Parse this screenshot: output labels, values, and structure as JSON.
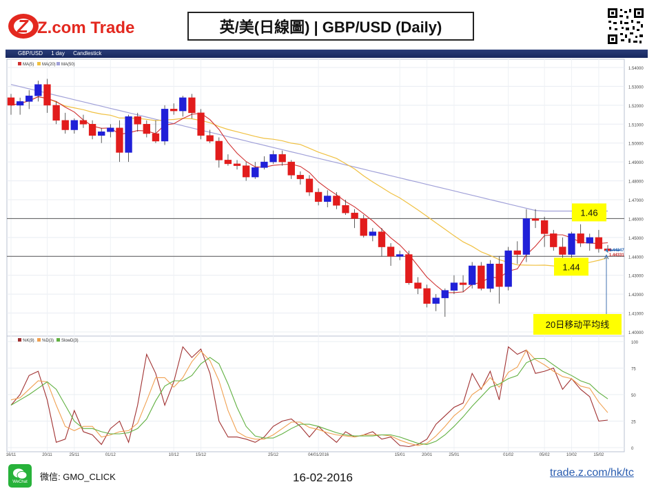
{
  "header": {
    "logo_text": "Z.com Trade",
    "title": "英/美(日線圖) | GBP/USD  (Daily)"
  },
  "toolbar": {
    "symbol": "GBP/USD",
    "period": "1 day",
    "style": "Candlestick"
  },
  "footer": {
    "wechat_label": "WeChat",
    "wechat_id": "微信: GMO_CLICK",
    "date": "16-02-2016",
    "link": "trade.z.com/hk/tc"
  },
  "colors": {
    "up": "#2020d8",
    "down": "#e21c1c",
    "ma5": "#d03030",
    "ma20": "#f0c040",
    "ma50": "#a0a0d8",
    "k": "#a03030",
    "d": "#f0a050",
    "slow": "#60b040",
    "annot_bg": "#ffff00"
  },
  "chart_data": [
    {
      "type": "candlestick",
      "legend": [
        "MA(5)",
        "MA(20)",
        "MA(50)"
      ],
      "ylim": [
        1.4,
        1.54
      ],
      "yticks": [
        "1.54000",
        "1.53000",
        "1.52000",
        "1.51000",
        "1.50000",
        "1.49000",
        "1.48000",
        "1.47000",
        "1.46000",
        "1.45000",
        "1.44000",
        "1.43000",
        "1.42000",
        "1.41000",
        "1.40000"
      ],
      "xtick_labels": [
        {
          "i": 0,
          "label": "16/11"
        },
        {
          "i": 4,
          "label": "20/11"
        },
        {
          "i": 7,
          "label": "25/11"
        },
        {
          "i": 11,
          "label": "01/12"
        },
        {
          "i": 18,
          "label": "10/12"
        },
        {
          "i": 21,
          "label": "15/12"
        },
        {
          "i": 29,
          "label": "25/12"
        },
        {
          "i": 34,
          "label": "04/01/2016"
        },
        {
          "i": 43,
          "label": "15/01"
        },
        {
          "i": 46,
          "label": "20/01"
        },
        {
          "i": 49,
          "label": "25/01"
        },
        {
          "i": 55,
          "label": "01/02"
        },
        {
          "i": 59,
          "label": "05/02"
        },
        {
          "i": 62,
          "label": "10/02"
        },
        {
          "i": 65,
          "label": "15/02"
        }
      ],
      "ohlc": [
        [
          1.524,
          1.526,
          1.515,
          1.52
        ],
        [
          1.52,
          1.524,
          1.515,
          1.522
        ],
        [
          1.522,
          1.528,
          1.518,
          1.525
        ],
        [
          1.525,
          1.533,
          1.522,
          1.531
        ],
        [
          1.531,
          1.534,
          1.516,
          1.52
        ],
        [
          1.52,
          1.522,
          1.51,
          1.512
        ],
        [
          1.512,
          1.516,
          1.505,
          1.507
        ],
        [
          1.507,
          1.513,
          1.505,
          1.512
        ],
        [
          1.512,
          1.515,
          1.508,
          1.51
        ],
        [
          1.51,
          1.512,
          1.502,
          1.504
        ],
        [
          1.504,
          1.508,
          1.5,
          1.506
        ],
        [
          1.506,
          1.51,
          1.503,
          1.508
        ],
        [
          1.508,
          1.512,
          1.49,
          1.495
        ],
        [
          1.495,
          1.515,
          1.49,
          1.514
        ],
        [
          1.514,
          1.516,
          1.506,
          1.51
        ],
        [
          1.51,
          1.512,
          1.503,
          1.505
        ],
        [
          1.505,
          1.512,
          1.5,
          1.501
        ],
        [
          1.501,
          1.52,
          1.499,
          1.518
        ],
        [
          1.518,
          1.521,
          1.515,
          1.517
        ],
        [
          1.517,
          1.525,
          1.514,
          1.524
        ],
        [
          1.524,
          1.526,
          1.513,
          1.516
        ],
        [
          1.516,
          1.518,
          1.502,
          1.504
        ],
        [
          1.504,
          1.507,
          1.5,
          1.501
        ],
        [
          1.501,
          1.503,
          1.487,
          1.491
        ],
        [
          1.491,
          1.494,
          1.488,
          1.489
        ],
        [
          1.489,
          1.491,
          1.486,
          1.488
        ],
        [
          1.488,
          1.49,
          1.48,
          1.482
        ],
        [
          1.482,
          1.49,
          1.481,
          1.487
        ],
        [
          1.487,
          1.493,
          1.486,
          1.49
        ],
        [
          1.49,
          1.496,
          1.489,
          1.494
        ],
        [
          1.494,
          1.496,
          1.488,
          1.49
        ],
        [
          1.49,
          1.491,
          1.481,
          1.483
        ],
        [
          1.483,
          1.485,
          1.478,
          1.481
        ],
        [
          1.481,
          1.483,
          1.472,
          1.474
        ],
        [
          1.474,
          1.476,
          1.467,
          1.469
        ],
        [
          1.469,
          1.475,
          1.466,
          1.472
        ],
        [
          1.472,
          1.474,
          1.465,
          1.467
        ],
        [
          1.467,
          1.47,
          1.462,
          1.463
        ],
        [
          1.463,
          1.465,
          1.455,
          1.46
        ],
        [
          1.46,
          1.462,
          1.45,
          1.451
        ],
        [
          1.451,
          1.455,
          1.448,
          1.453
        ],
        [
          1.453,
          1.455,
          1.44,
          1.445
        ],
        [
          1.445,
          1.447,
          1.435,
          1.44
        ],
        [
          1.44,
          1.443,
          1.438,
          1.441
        ],
        [
          1.441,
          1.443,
          1.425,
          1.426
        ],
        [
          1.426,
          1.429,
          1.42,
          1.423
        ],
        [
          1.423,
          1.425,
          1.413,
          1.415
        ],
        [
          1.415,
          1.42,
          1.411,
          1.418
        ],
        [
          1.418,
          1.423,
          1.408,
          1.422
        ],
        [
          1.422,
          1.43,
          1.42,
          1.426
        ],
        [
          1.426,
          1.43,
          1.421,
          1.425
        ],
        [
          1.425,
          1.437,
          1.423,
          1.435
        ],
        [
          1.435,
          1.437,
          1.422,
          1.423
        ],
        [
          1.423,
          1.438,
          1.421,
          1.436
        ],
        [
          1.436,
          1.44,
          1.415,
          1.424
        ],
        [
          1.424,
          1.445,
          1.422,
          1.443
        ],
        [
          1.443,
          1.448,
          1.436,
          1.441
        ],
        [
          1.441,
          1.465,
          1.437,
          1.46
        ],
        [
          1.46,
          1.465,
          1.455,
          1.459
        ],
        [
          1.459,
          1.461,
          1.445,
          1.452
        ],
        [
          1.452,
          1.454,
          1.443,
          1.445
        ],
        [
          1.445,
          1.45,
          1.437,
          1.441
        ],
        [
          1.441,
          1.453,
          1.438,
          1.452
        ],
        [
          1.452,
          1.457,
          1.445,
          1.447
        ],
        [
          1.447,
          1.452,
          1.443,
          1.45
        ],
        [
          1.45,
          1.454,
          1.442,
          1.444
        ],
        [
          1.444,
          1.446,
          1.442,
          1.443
        ]
      ],
      "last_prices": [
        "1.44347",
        "1.44331"
      ],
      "annotations": [
        {
          "label": "1.46",
          "value": 1.46
        },
        {
          "label": "1.44",
          "value": 1.44
        },
        {
          "label": "20日移动平均线"
        }
      ]
    },
    {
      "type": "line",
      "legend": [
        "%K(9)",
        "%D(3)",
        "SlowD(3)"
      ],
      "ylim": [
        0,
        100
      ],
      "yticks": [
        "100",
        "75",
        "50",
        "25",
        "0"
      ],
      "series": [
        {
          "key": "k",
          "values": [
            40,
            50,
            68,
            72,
            45,
            5,
            8,
            35,
            15,
            12,
            3,
            18,
            25,
            5,
            40,
            88,
            70,
            40,
            62,
            95,
            85,
            93,
            70,
            25,
            10,
            10,
            8,
            5,
            10,
            20,
            25,
            27,
            20,
            10,
            20,
            12,
            5,
            15,
            10,
            12,
            15,
            8,
            10,
            2,
            1,
            3,
            8,
            22,
            30,
            38,
            42,
            70,
            55,
            72,
            45,
            95,
            88,
            92,
            70,
            72,
            75,
            55,
            65,
            55,
            48,
            25,
            26
          ]
        },
        {
          "key": "d",
          "values": [
            45,
            47,
            55,
            63,
            62,
            40,
            20,
            16,
            20,
            20,
            10,
            12,
            15,
            16,
            23,
            44,
            66,
            66,
            57,
            66,
            81,
            91,
            82,
            63,
            35,
            15,
            10,
            8,
            8,
            12,
            18,
            24,
            24,
            19,
            17,
            14,
            12,
            11,
            10,
            12,
            12,
            12,
            11,
            7,
            4,
            2,
            4,
            11,
            20,
            30,
            37,
            50,
            56,
            66,
            57,
            71,
            76,
            92,
            83,
            78,
            72,
            67,
            65,
            58,
            56,
            43,
            33
          ]
        },
        {
          "key": "slow",
          "values": [
            40,
            45,
            50,
            56,
            62,
            55,
            40,
            25,
            18,
            18,
            15,
            13,
            13,
            14,
            18,
            27,
            44,
            58,
            63,
            63,
            68,
            79,
            85,
            79,
            60,
            38,
            20,
            11,
            9,
            9,
            13,
            18,
            22,
            22,
            20,
            17,
            14,
            12,
            11,
            11,
            11,
            12,
            12,
            10,
            7,
            4,
            3,
            6,
            12,
            20,
            29,
            39,
            48,
            57,
            60,
            65,
            68,
            80,
            84,
            84,
            78,
            72,
            68,
            63,
            60,
            52,
            46
          ]
        }
      ]
    }
  ]
}
